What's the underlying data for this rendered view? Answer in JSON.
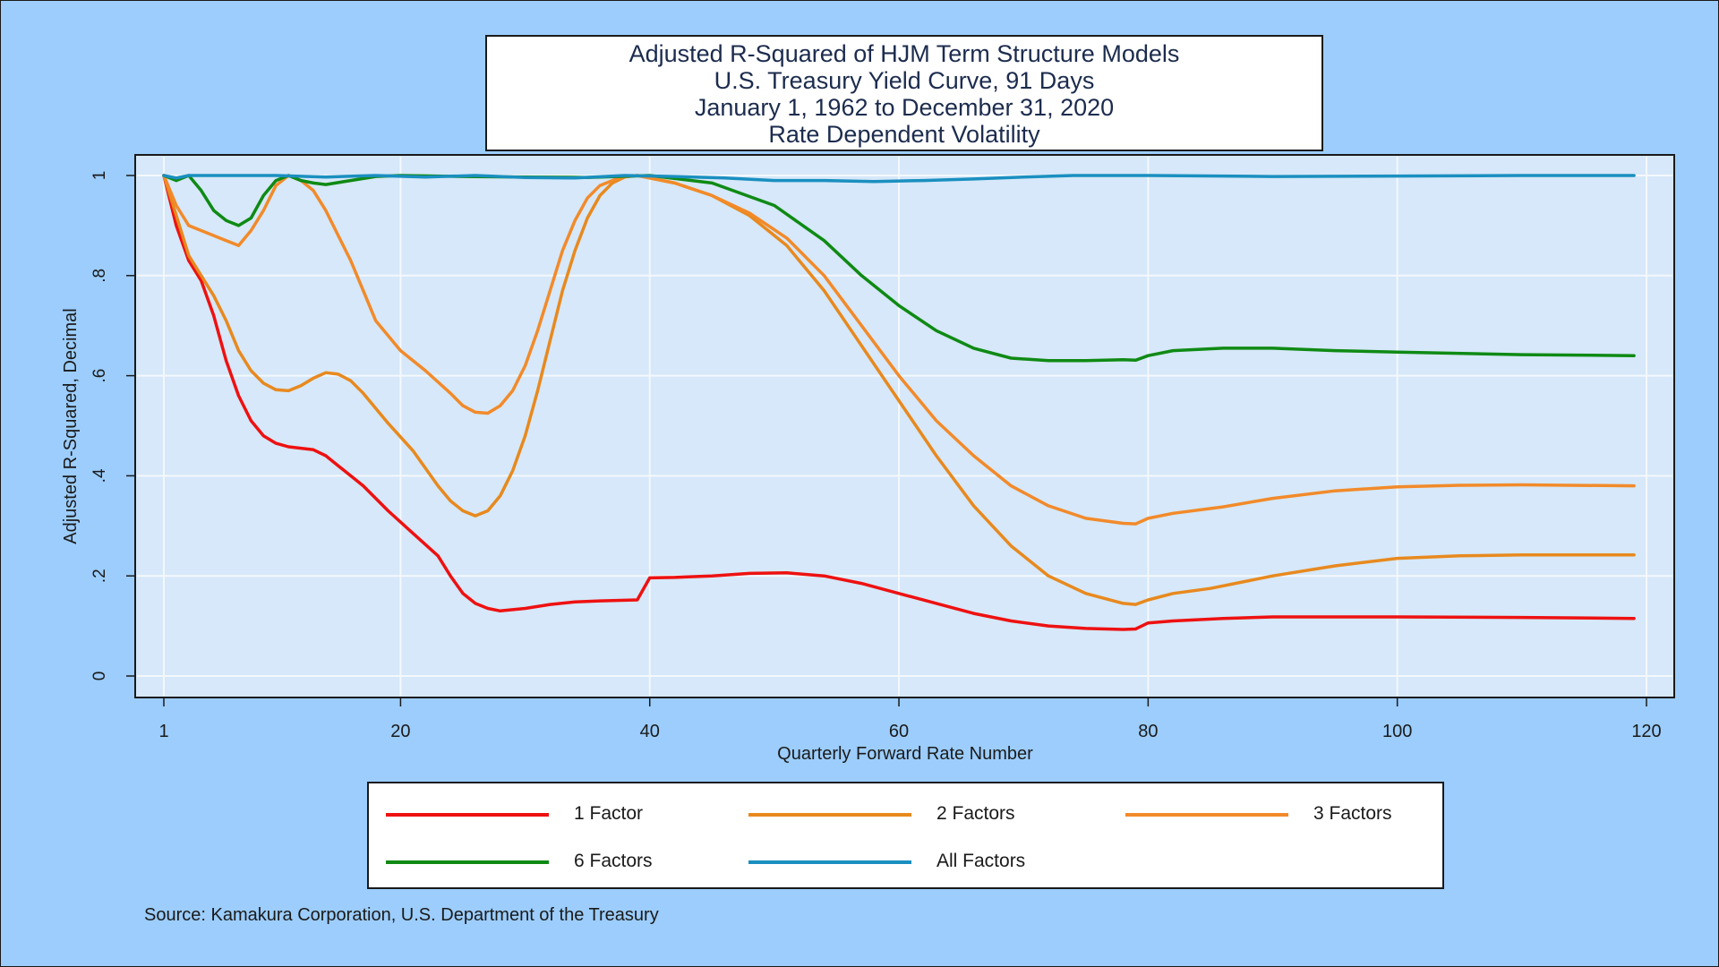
{
  "chart_data": {
    "type": "line",
    "title": "Adjusted R-Squared of HJM Term Structure Models",
    "subtitle_lines": [
      "U.S. Treasury Yield Curve, 91 Days",
      "January 1, 1962 to December 31, 2020",
      "Rate Dependent Volatility"
    ],
    "xlabel": "Quarterly Forward Rate Number",
    "ylabel": "Adjusted R-Squared, Decimal",
    "xlim": [
      1,
      120
    ],
    "ylim": [
      0,
      1
    ],
    "x_ticks": [
      1,
      20,
      40,
      60,
      80,
      100,
      120
    ],
    "y_ticks": [
      0,
      0.2,
      0.4,
      0.6,
      0.8,
      1
    ],
    "y_tick_labels": [
      "0",
      ".2",
      ".4",
      ".6",
      ".8",
      "1"
    ],
    "grid": true,
    "legend_position": "bottom",
    "series": [
      {
        "name": "1 Factor",
        "color": "#ee1111",
        "points": [
          [
            1,
            1
          ],
          [
            2,
            0.9
          ],
          [
            3,
            0.83
          ],
          [
            4,
            0.79
          ],
          [
            5,
            0.72
          ],
          [
            6,
            0.63
          ],
          [
            7,
            0.56
          ],
          [
            8,
            0.51
          ],
          [
            9,
            0.48
          ],
          [
            10,
            0.465
          ],
          [
            11,
            0.458
          ],
          [
            13,
            0.452
          ],
          [
            14,
            0.44
          ],
          [
            15,
            0.42
          ],
          [
            17,
            0.38
          ],
          [
            19,
            0.33
          ],
          [
            21,
            0.285
          ],
          [
            23,
            0.24
          ],
          [
            24,
            0.2
          ],
          [
            25,
            0.165
          ],
          [
            26,
            0.145
          ],
          [
            27,
            0.135
          ],
          [
            28,
            0.13
          ],
          [
            30,
            0.135
          ],
          [
            32,
            0.143
          ],
          [
            34,
            0.148
          ],
          [
            36,
            0.15
          ],
          [
            39,
            0.152
          ],
          [
            40,
            0.196
          ],
          [
            42,
            0.197
          ],
          [
            45,
            0.2
          ],
          [
            48,
            0.205
          ],
          [
            51,
            0.206
          ],
          [
            54,
            0.2
          ],
          [
            57,
            0.185
          ],
          [
            60,
            0.165
          ],
          [
            63,
            0.145
          ],
          [
            66,
            0.125
          ],
          [
            69,
            0.11
          ],
          [
            72,
            0.1
          ],
          [
            75,
            0.095
          ],
          [
            78,
            0.093
          ],
          [
            79,
            0.094
          ],
          [
            80,
            0.106
          ],
          [
            82,
            0.11
          ],
          [
            86,
            0.115
          ],
          [
            90,
            0.118
          ],
          [
            100,
            0.118
          ],
          [
            110,
            0.117
          ],
          [
            119,
            0.115
          ]
        ]
      },
      {
        "name": "2 Factors",
        "color": "#e8891e",
        "points": [
          [
            1,
            1
          ],
          [
            2,
            0.92
          ],
          [
            3,
            0.84
          ],
          [
            4,
            0.8
          ],
          [
            5,
            0.76
          ],
          [
            6,
            0.71
          ],
          [
            7,
            0.65
          ],
          [
            8,
            0.61
          ],
          [
            9,
            0.585
          ],
          [
            10,
            0.572
          ],
          [
            11,
            0.57
          ],
          [
            12,
            0.58
          ],
          [
            13,
            0.595
          ],
          [
            14,
            0.606
          ],
          [
            15,
            0.603
          ],
          [
            16,
            0.59
          ],
          [
            17,
            0.565
          ],
          [
            19,
            0.505
          ],
          [
            21,
            0.45
          ],
          [
            23,
            0.38
          ],
          [
            24,
            0.35
          ],
          [
            25,
            0.33
          ],
          [
            26,
            0.32
          ],
          [
            27,
            0.33
          ],
          [
            28,
            0.36
          ],
          [
            29,
            0.41
          ],
          [
            30,
            0.48
          ],
          [
            31,
            0.57
          ],
          [
            32,
            0.67
          ],
          [
            33,
            0.77
          ],
          [
            34,
            0.85
          ],
          [
            35,
            0.915
          ],
          [
            36,
            0.96
          ],
          [
            37,
            0.985
          ],
          [
            38,
            0.997
          ],
          [
            39,
            1
          ],
          [
            42,
            0.985
          ],
          [
            45,
            0.96
          ],
          [
            48,
            0.92
          ],
          [
            51,
            0.86
          ],
          [
            54,
            0.77
          ],
          [
            57,
            0.66
          ],
          [
            60,
            0.55
          ],
          [
            63,
            0.44
          ],
          [
            66,
            0.34
          ],
          [
            69,
            0.26
          ],
          [
            72,
            0.2
          ],
          [
            75,
            0.165
          ],
          [
            78,
            0.145
          ],
          [
            79,
            0.143
          ],
          [
            80,
            0.152
          ],
          [
            82,
            0.165
          ],
          [
            85,
            0.175
          ],
          [
            90,
            0.2
          ],
          [
            95,
            0.22
          ],
          [
            100,
            0.235
          ],
          [
            105,
            0.24
          ],
          [
            110,
            0.242
          ],
          [
            119,
            0.242
          ]
        ]
      },
      {
        "name": "3 Factors",
        "color": "#f28a2a",
        "points": [
          [
            1,
            1
          ],
          [
            2,
            0.94
          ],
          [
            3,
            0.9
          ],
          [
            4,
            0.89
          ],
          [
            5,
            0.88
          ],
          [
            6,
            0.87
          ],
          [
            7,
            0.86
          ],
          [
            8,
            0.89
          ],
          [
            9,
            0.93
          ],
          [
            10,
            0.98
          ],
          [
            11,
            1
          ],
          [
            12,
            0.99
          ],
          [
            13,
            0.97
          ],
          [
            14,
            0.93
          ],
          [
            15,
            0.88
          ],
          [
            16,
            0.83
          ],
          [
            17,
            0.77
          ],
          [
            18,
            0.71
          ],
          [
            20,
            0.65
          ],
          [
            22,
            0.61
          ],
          [
            24,
            0.565
          ],
          [
            25,
            0.54
          ],
          [
            26,
            0.527
          ],
          [
            27,
            0.525
          ],
          [
            28,
            0.54
          ],
          [
            29,
            0.57
          ],
          [
            30,
            0.62
          ],
          [
            31,
            0.69
          ],
          [
            32,
            0.77
          ],
          [
            33,
            0.85
          ],
          [
            34,
            0.91
          ],
          [
            35,
            0.955
          ],
          [
            36,
            0.98
          ],
          [
            37,
            0.99
          ],
          [
            38,
            0.998
          ],
          [
            39,
            1
          ],
          [
            42,
            0.985
          ],
          [
            45,
            0.96
          ],
          [
            48,
            0.925
          ],
          [
            51,
            0.875
          ],
          [
            54,
            0.8
          ],
          [
            57,
            0.7
          ],
          [
            60,
            0.6
          ],
          [
            63,
            0.51
          ],
          [
            66,
            0.44
          ],
          [
            69,
            0.38
          ],
          [
            72,
            0.34
          ],
          [
            75,
            0.315
          ],
          [
            78,
            0.305
          ],
          [
            79,
            0.304
          ],
          [
            80,
            0.315
          ],
          [
            82,
            0.325
          ],
          [
            86,
            0.338
          ],
          [
            90,
            0.355
          ],
          [
            95,
            0.37
          ],
          [
            100,
            0.378
          ],
          [
            105,
            0.381
          ],
          [
            110,
            0.382
          ],
          [
            119,
            0.38
          ]
        ]
      },
      {
        "name": "6 Factors",
        "color": "#0f8a14",
        "points": [
          [
            1,
            1
          ],
          [
            2,
            0.99
          ],
          [
            3,
            1
          ],
          [
            4,
            0.97
          ],
          [
            5,
            0.93
          ],
          [
            6,
            0.91
          ],
          [
            7,
            0.9
          ],
          [
            8,
            0.915
          ],
          [
            9,
            0.96
          ],
          [
            10,
            0.99
          ],
          [
            11,
            1
          ],
          [
            12,
            0.99
          ],
          [
            13,
            0.985
          ],
          [
            14,
            0.982
          ],
          [
            16,
            0.99
          ],
          [
            18,
            0.998
          ],
          [
            20,
            1
          ],
          [
            25,
            0.998
          ],
          [
            30,
            0.997
          ],
          [
            35,
            0.996
          ],
          [
            40,
            1
          ],
          [
            45,
            0.985
          ],
          [
            50,
            0.94
          ],
          [
            54,
            0.87
          ],
          [
            57,
            0.8
          ],
          [
            60,
            0.74
          ],
          [
            63,
            0.69
          ],
          [
            66,
            0.655
          ],
          [
            69,
            0.635
          ],
          [
            72,
            0.63
          ],
          [
            75,
            0.63
          ],
          [
            78,
            0.632
          ],
          [
            79,
            0.631
          ],
          [
            80,
            0.64
          ],
          [
            82,
            0.65
          ],
          [
            86,
            0.655
          ],
          [
            90,
            0.655
          ],
          [
            95,
            0.65
          ],
          [
            100,
            0.647
          ],
          [
            110,
            0.642
          ],
          [
            119,
            0.64
          ]
        ]
      },
      {
        "name": "All Factors",
        "color": "#1a8fc0",
        "points": [
          [
            1,
            1
          ],
          [
            2,
            0.995
          ],
          [
            3,
            1
          ],
          [
            6,
            1
          ],
          [
            10,
            1
          ],
          [
            14,
            0.997
          ],
          [
            18,
            1
          ],
          [
            22,
            0.997
          ],
          [
            26,
            1
          ],
          [
            30,
            0.996
          ],
          [
            34,
            0.995
          ],
          [
            38,
            1
          ],
          [
            42,
            0.998
          ],
          [
            46,
            0.995
          ],
          [
            50,
            0.99
          ],
          [
            54,
            0.99
          ],
          [
            58,
            0.988
          ],
          [
            62,
            0.99
          ],
          [
            66,
            0.993
          ],
          [
            70,
            0.997
          ],
          [
            74,
            1
          ],
          [
            80,
            1
          ],
          [
            90,
            0.998
          ],
          [
            100,
            0.999
          ],
          [
            110,
            1
          ],
          [
            119,
            1
          ]
        ]
      }
    ]
  },
  "footer": {
    "source": "Source: Kamakura Corporation, U.S. Department of the Treasury"
  }
}
